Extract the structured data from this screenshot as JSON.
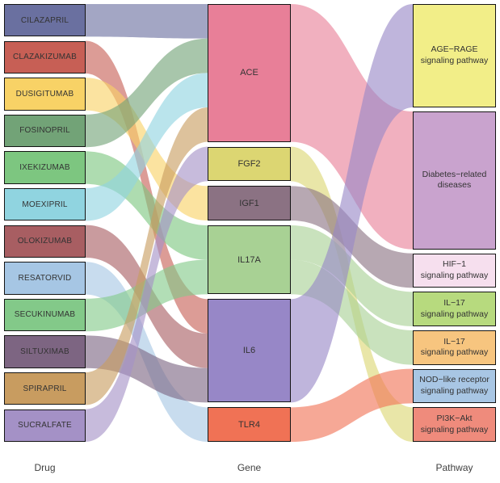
{
  "chart_data": {
    "type": "sankey",
    "title": "",
    "axis_labels": [
      "Drug",
      "Gene",
      "Pathway"
    ],
    "legend": "none",
    "background": "#ffffff",
    "columns": [
      {
        "name": "Drug",
        "nodes": [
          {
            "label": "CILAZAPRIL",
            "color": "#6a70a0"
          },
          {
            "label": "CLAZAKIZUMAB",
            "color": "#c75f55"
          },
          {
            "label": "DUSIGITUMAB",
            "color": "#f8d266"
          },
          {
            "label": "FOSINOPRIL",
            "color": "#72a377"
          },
          {
            "label": "IXEKIZUMAB",
            "color": "#7dc680"
          },
          {
            "label": "MOEXIPRIL",
            "color": "#90d4e0"
          },
          {
            "label": "OLOKIZUMAB",
            "color": "#a85e62"
          },
          {
            "label": "RESATORVID",
            "color": "#a6c6e4"
          },
          {
            "label": "SECUKINUMAB",
            "color": "#83c989"
          },
          {
            "label": "SILTUXIMAB",
            "color": "#7d6582"
          },
          {
            "label": "SPIRAPRIL",
            "color": "#c89c60"
          },
          {
            "label": "SUCRALFATE",
            "color": "#a491c6"
          }
        ]
      },
      {
        "name": "Gene",
        "nodes": [
          {
            "label": "ACE",
            "color": "#e87f98"
          },
          {
            "label": "FGF2",
            "color": "#dcd672"
          },
          {
            "label": "IGF1",
            "color": "#8b7283"
          },
          {
            "label": "IL17A",
            "color": "#a8d194"
          },
          {
            "label": "IL6",
            "color": "#9787c7"
          },
          {
            "label": "TLR4",
            "color": "#f07255"
          }
        ]
      },
      {
        "name": "Pathway",
        "nodes": [
          {
            "label": "AGE−RAGE signaling pathway",
            "lines": [
              "AGE−RAGE",
              "signaling pathway"
            ],
            "color": "#f2ee88"
          },
          {
            "label": "Diabetes−related diseases",
            "lines": [
              "Diabetes−related",
              "diseases"
            ],
            "color": "#c9a3ce"
          },
          {
            "label": "HIF−1 signaling pathway",
            "lines": [
              "HIF−1",
              "signaling pathway"
            ],
            "color": "#f6dfee"
          },
          {
            "label": "IL−17 signaling pathway",
            "lines": [
              "IL−17",
              "signaling pathway"
            ],
            "color": "#b7da7e"
          },
          {
            "label": "IL−17 signaling pathway",
            "lines": [
              "IL−17",
              "signaling pathway"
            ],
            "color": "#f7c57f"
          },
          {
            "label": "NOD−like receptor signaling pathway",
            "lines": [
              "NOD−like receptor",
              "signaling pathway"
            ],
            "color": "#a8c6e4"
          },
          {
            "label": "PI3K−Akt signaling pathway",
            "lines": [
              "PI3K−Akt",
              "signaling pathway"
            ],
            "color": "#ef8b7c"
          }
        ]
      }
    ],
    "links": {
      "drug_gene": [
        {
          "source": "CILAZAPRIL",
          "si": 0,
          "target": "ACE",
          "ti": 0,
          "value": 1
        },
        {
          "source": "CLAZAKIZUMAB",
          "si": 1,
          "target": "IL6",
          "ti": 4,
          "value": 1
        },
        {
          "source": "DUSIGITUMAB",
          "si": 2,
          "target": "IGF1",
          "ti": 2,
          "value": 1
        },
        {
          "source": "FOSINOPRIL",
          "si": 3,
          "target": "ACE",
          "ti": 0,
          "value": 1
        },
        {
          "source": "IXEKIZUMAB",
          "si": 4,
          "target": "IL17A",
          "ti": 3,
          "value": 1
        },
        {
          "source": "MOEXIPRIL",
          "si": 5,
          "target": "ACE",
          "ti": 0,
          "value": 1
        },
        {
          "source": "OLOKIZUMAB",
          "si": 6,
          "target": "IL6",
          "ti": 4,
          "value": 1
        },
        {
          "source": "RESATORVID",
          "si": 7,
          "target": "TLR4",
          "ti": 5,
          "value": 1
        },
        {
          "source": "SECUKINUMAB",
          "si": 8,
          "target": "IL17A",
          "ti": 3,
          "value": 1
        },
        {
          "source": "SILTUXIMAB",
          "si": 9,
          "target": "IL6",
          "ti": 4,
          "value": 1
        },
        {
          "source": "SPIRAPRIL",
          "si": 10,
          "target": "ACE",
          "ti": 0,
          "value": 1
        },
        {
          "source": "SUCRALFATE",
          "si": 11,
          "target": "FGF2",
          "ti": 1,
          "value": 1
        }
      ],
      "gene_pathway": [
        {
          "source": "ACE",
          "si": 0,
          "target": "Diabetes−related diseases",
          "ti": 1,
          "value": 4
        },
        {
          "source": "FGF2",
          "si": 1,
          "target": "PI3K−Akt signaling pathway",
          "ti": 6,
          "value": 1
        },
        {
          "source": "IGF1",
          "si": 2,
          "target": "HIF−1 signaling pathway",
          "ti": 2,
          "value": 1
        },
        {
          "source": "IL17A",
          "si": 3,
          "target": "IL−17 signaling pathway",
          "ti": 3,
          "value": 1
        },
        {
          "source": "IL17A",
          "si": 3,
          "target": "IL−17 signaling pathway",
          "ti": 4,
          "value": 1
        },
        {
          "source": "IL6",
          "si": 4,
          "target": "AGE−RAGE signaling pathway",
          "ti": 0,
          "value": 3
        },
        {
          "source": "TLR4",
          "si": 5,
          "target": "NOD−like receptor signaling pathway",
          "ti": 5,
          "value": 1
        }
      ]
    }
  }
}
